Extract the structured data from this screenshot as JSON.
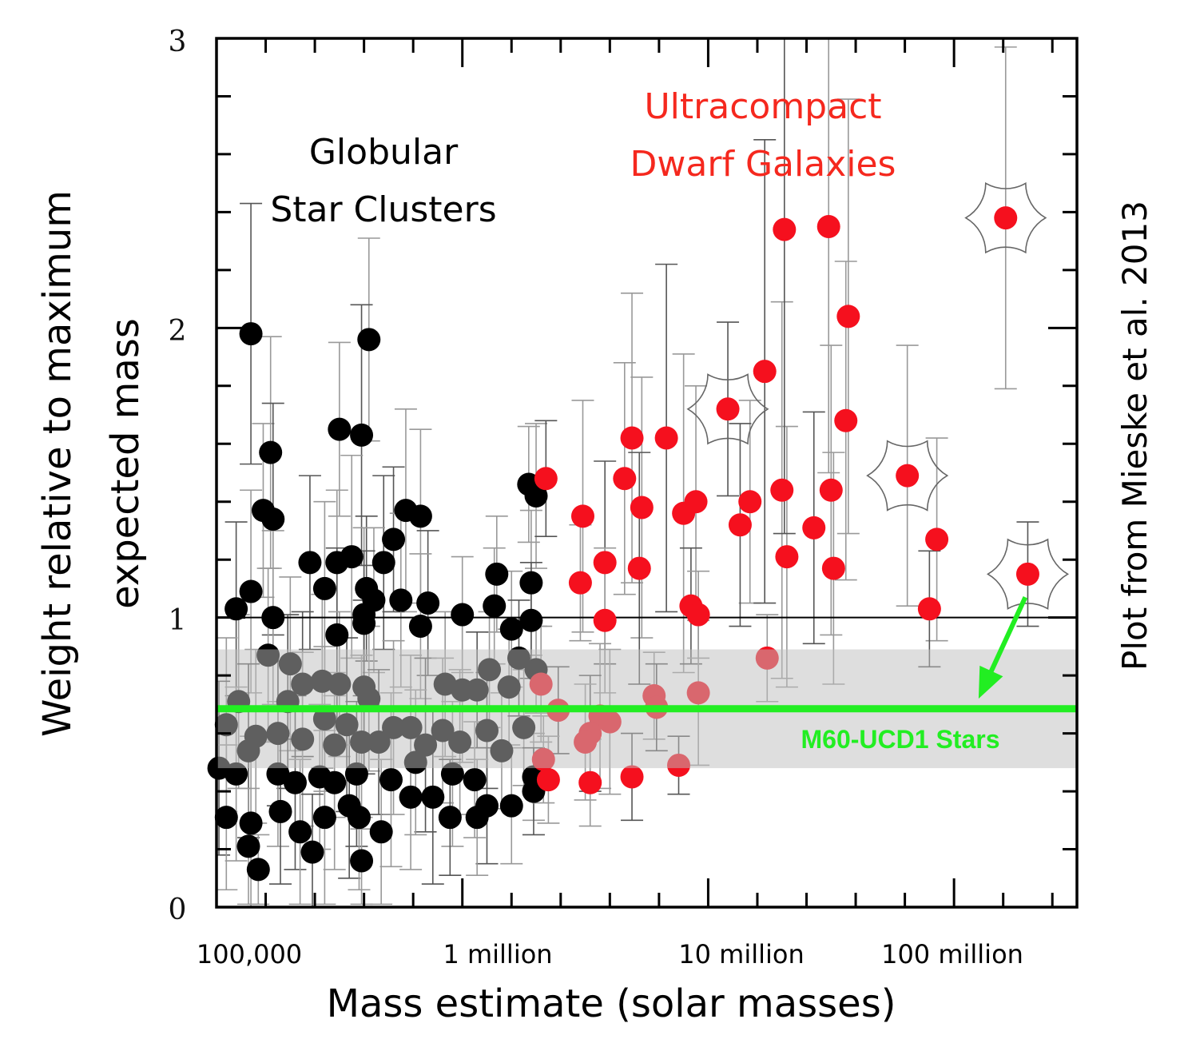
{
  "chart_data": {
    "type": "scatter",
    "title": "",
    "xlabel": "Mass estimate (solar masses)",
    "ylabel_lines": [
      "Weight relative to maximum",
      "expected mass"
    ],
    "x_scale": "log10",
    "xlim_log10": [
      5.0,
      8.5
    ],
    "ylim": [
      0,
      3
    ],
    "x_ticks": [
      {
        "log10": 5,
        "label": "100,000"
      },
      {
        "log10": 6,
        "label": "1 million"
      },
      {
        "log10": 7,
        "label": "10 million"
      },
      {
        "log10": 8,
        "label": "100 million"
      }
    ],
    "x_minor_step_log10": 0.2,
    "y_ticks": [
      {
        "value": 0,
        "label": "0"
      },
      {
        "value": 1,
        "label": "1"
      },
      {
        "value": 2,
        "label": "2"
      },
      {
        "value": 3,
        "label": "3"
      }
    ],
    "y_minor_step": 0.2,
    "grid": false,
    "reference_line": {
      "value": 1.0,
      "color": "#000000"
    },
    "highlight_band": {
      "label": "M60-UCD1 Stars",
      "range": [
        0.48,
        0.89
      ],
      "line_value": 0.685,
      "color": "#22EE22",
      "band_color": "#BEBEBE"
    },
    "annotations": [
      {
        "id": "gc",
        "lines": [
          "Globular",
          "Star Clusters"
        ],
        "color": "#000000"
      },
      {
        "id": "ucd",
        "lines": [
          "Ultracompact",
          "Dwarf Galaxies"
        ],
        "color": "#F5281E"
      },
      {
        "id": "credit",
        "text": "Plot from Mieske et al. 2013",
        "color": "#000000"
      }
    ],
    "arrow": {
      "from": {
        "log10": 8.29,
        "value": 1.07
      },
      "to": {
        "log10": 8.1,
        "value": 0.72
      },
      "color": "#22EE22"
    },
    "series": [
      {
        "name": "Globular Star Clusters",
        "color": "#000000",
        "points": [
          [
            5.14,
            1.98,
            0.45
          ],
          [
            5.62,
            1.96,
            0.35
          ],
          [
            5.5,
            1.65,
            0.3
          ],
          [
            5.59,
            1.63,
            0.45
          ],
          [
            5.22,
            1.57,
            0.4
          ],
          [
            5.19,
            1.37,
            0.3
          ],
          [
            5.23,
            1.34,
            0.4
          ],
          [
            5.77,
            1.37,
            0.35
          ],
          [
            5.83,
            1.35,
            0.3
          ],
          [
            5.72,
            1.27,
            0.25
          ],
          [
            6.27,
            1.46,
            0.2
          ],
          [
            6.3,
            1.42,
            0.25
          ],
          [
            5.38,
            1.19,
            0.3
          ],
          [
            5.49,
            1.19,
            0.25
          ],
          [
            5.55,
            1.21,
            0.35
          ],
          [
            5.68,
            1.19,
            0.3
          ],
          [
            6.14,
            1.15,
            0.2
          ],
          [
            6.28,
            1.12,
            0.25
          ],
          [
            5.08,
            1.03,
            0.3
          ],
          [
            5.14,
            1.09,
            0.35
          ],
          [
            5.44,
            1.1,
            0.3
          ],
          [
            5.61,
            1.1,
            0.25
          ],
          [
            5.64,
            1.06,
            0.25
          ],
          [
            5.75,
            1.06,
            0.3
          ],
          [
            5.86,
            1.05,
            0.25
          ],
          [
            5.23,
            1.0,
            0.3
          ],
          [
            5.6,
            1.01,
            0.3
          ],
          [
            5.6,
            0.98,
            0.25
          ],
          [
            6.0,
            1.01,
            0.2
          ],
          [
            6.13,
            1.04,
            0.2
          ],
          [
            6.28,
            0.99,
            0.2
          ],
          [
            6.2,
            0.96,
            0.2
          ],
          [
            5.83,
            0.97,
            0.25
          ],
          [
            5.49,
            0.94,
            0.3
          ],
          [
            5.21,
            0.87,
            0.3
          ],
          [
            5.3,
            0.84,
            0.3
          ],
          [
            5.35,
            0.77,
            0.25
          ],
          [
            5.43,
            0.78,
            0.3
          ],
          [
            5.5,
            0.77,
            0.25
          ],
          [
            5.6,
            0.76,
            0.3
          ],
          [
            5.62,
            0.72,
            0.25
          ],
          [
            5.09,
            0.71,
            0.3
          ],
          [
            5.29,
            0.71,
            0.3
          ],
          [
            5.04,
            0.63,
            0.3
          ],
          [
            5.16,
            0.59,
            0.3
          ],
          [
            5.25,
            0.6,
            0.25
          ],
          [
            5.35,
            0.58,
            0.3
          ],
          [
            5.44,
            0.65,
            0.25
          ],
          [
            5.53,
            0.63,
            0.3
          ],
          [
            5.48,
            0.56,
            0.25
          ],
          [
            5.59,
            0.57,
            0.3
          ],
          [
            5.66,
            0.57,
            0.25
          ],
          [
            5.72,
            0.62,
            0.3
          ],
          [
            5.79,
            0.62,
            0.25
          ],
          [
            5.85,
            0.56,
            0.3
          ],
          [
            5.92,
            0.61,
            0.25
          ],
          [
            5.99,
            0.57,
            0.25
          ],
          [
            6.1,
            0.61,
            0.2
          ],
          [
            6.16,
            0.54,
            0.2
          ],
          [
            6.25,
            0.62,
            0.2
          ],
          [
            5.13,
            0.54,
            0.3
          ],
          [
            5.93,
            0.77,
            0.25
          ],
          [
            6.0,
            0.75,
            0.25
          ],
          [
            6.06,
            0.75,
            0.2
          ],
          [
            6.11,
            0.82,
            0.2
          ],
          [
            6.19,
            0.76,
            0.2
          ],
          [
            6.23,
            0.86,
            0.2
          ],
          [
            6.3,
            0.82,
            0.15
          ],
          [
            5.81,
            0.5,
            0.25
          ],
          [
            5.01,
            0.48,
            0.3
          ],
          [
            5.08,
            0.46,
            0.3
          ],
          [
            5.25,
            0.46,
            0.25
          ],
          [
            5.32,
            0.43,
            0.3
          ],
          [
            5.42,
            0.45,
            0.25
          ],
          [
            5.48,
            0.43,
            0.3
          ],
          [
            5.57,
            0.46,
            0.25
          ],
          [
            5.71,
            0.44,
            0.3
          ],
          [
            5.79,
            0.38,
            0.25
          ],
          [
            5.88,
            0.38,
            0.3
          ],
          [
            5.96,
            0.46,
            0.25
          ],
          [
            6.05,
            0.44,
            0.2
          ],
          [
            6.1,
            0.35,
            0.2
          ],
          [
            6.2,
            0.35,
            0.2
          ],
          [
            6.29,
            0.45,
            0.15
          ],
          [
            6.29,
            0.4,
            0.15
          ],
          [
            5.04,
            0.31,
            0.25
          ],
          [
            5.14,
            0.29,
            0.3
          ],
          [
            5.26,
            0.33,
            0.25
          ],
          [
            5.34,
            0.26,
            0.25
          ],
          [
            5.44,
            0.31,
            0.3
          ],
          [
            5.54,
            0.35,
            0.25
          ],
          [
            5.58,
            0.31,
            0.25
          ],
          [
            5.67,
            0.26,
            0.25
          ],
          [
            5.95,
            0.31,
            0.2
          ],
          [
            6.06,
            0.31,
            0.2
          ],
          [
            5.13,
            0.21,
            0.2
          ],
          [
            5.39,
            0.19,
            0.2
          ],
          [
            5.59,
            0.16,
            0.15
          ],
          [
            5.17,
            0.13,
            0.12
          ]
        ]
      },
      {
        "name": "Ultracompact Dwarf Galaxies",
        "color": "#F5101E",
        "points": [
          [
            6.34,
            1.48,
            0.2
          ],
          [
            6.49,
            1.35,
            0.4
          ],
          [
            6.48,
            1.12,
            0.2
          ],
          [
            6.58,
            1.19,
            0.35
          ],
          [
            6.58,
            0.99,
            0.25
          ],
          [
            6.69,
            1.62,
            0.5
          ],
          [
            6.83,
            1.62,
            0.6
          ],
          [
            6.66,
            1.48,
            0.4
          ],
          [
            6.73,
            1.38,
            0.45
          ],
          [
            6.72,
            1.17,
            0.4
          ],
          [
            6.9,
            1.36,
            0.55
          ],
          [
            6.95,
            1.4,
            0.4
          ],
          [
            6.93,
            1.04,
            0.2
          ],
          [
            6.96,
            1.01,
            0.15
          ],
          [
            7.17,
            1.4,
            0.35
          ],
          [
            7.13,
            1.32,
            0.35
          ],
          [
            7.3,
            1.44,
            0.65
          ],
          [
            7.32,
            1.21,
            0.45
          ],
          [
            7.31,
            2.34,
            1.05
          ],
          [
            7.49,
            2.35,
            0.85
          ],
          [
            7.57,
            2.04,
            0.75
          ],
          [
            7.23,
            1.85,
            0.8
          ],
          [
            7.56,
            1.68,
            0.55
          ],
          [
            7.5,
            1.44,
            0.5
          ],
          [
            7.43,
            1.31,
            0.4
          ],
          [
            7.51,
            1.17,
            0.4
          ],
          [
            7.93,
            1.27,
            0.35
          ],
          [
            7.9,
            1.03,
            0.2
          ],
          [
            7.24,
            0.86,
            0.15
          ],
          [
            6.32,
            0.77,
            0.2
          ],
          [
            6.39,
            0.68,
            0.15
          ],
          [
            6.56,
            0.66,
            0.25
          ],
          [
            6.6,
            0.64,
            0.25
          ],
          [
            6.52,
            0.6,
            0.2
          ],
          [
            6.5,
            0.57,
            0.2
          ],
          [
            6.78,
            0.73,
            0.15
          ],
          [
            6.79,
            0.69,
            0.15
          ],
          [
            6.96,
            0.74,
            0.25
          ],
          [
            6.33,
            0.51,
            0.15
          ],
          [
            6.88,
            0.49,
            0.1
          ],
          [
            6.35,
            0.44,
            0.15
          ],
          [
            6.52,
            0.43,
            0.15
          ],
          [
            6.69,
            0.45,
            0.15
          ]
        ]
      },
      {
        "name": "Ultracompact Dwarf Galaxies (star-marked)",
        "color": "#F5101E",
        "marker": "star",
        "points": [
          [
            7.08,
            1.72,
            0.3
          ],
          [
            7.81,
            1.49,
            0.45
          ],
          [
            8.21,
            2.38,
            0.59
          ],
          [
            8.3,
            1.15,
            0.18
          ]
        ]
      }
    ]
  }
}
